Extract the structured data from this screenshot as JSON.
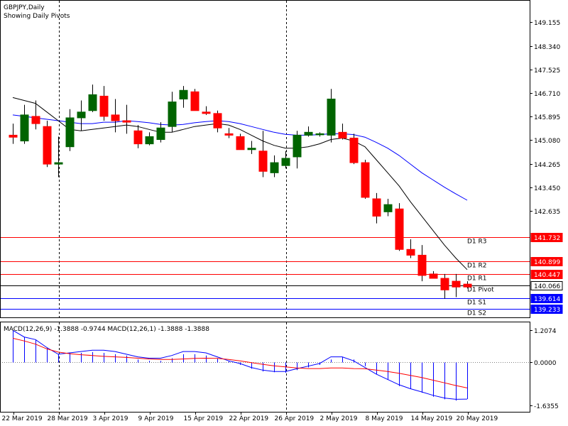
{
  "header": {
    "symbol": "GBPJPY,Daily",
    "subtitle": "Showing Daily Pivots"
  },
  "colors": {
    "bull": "#006400",
    "bear": "#ff0000",
    "ma_fast": "#000000",
    "ma_slow": "#0000ff",
    "resistance": "#ff0000",
    "support": "#0000ff",
    "pivot": "#000000",
    "macd_line": "#0000ff",
    "signal_line": "#ff0000",
    "histogram": "#0000ff"
  },
  "chart_data": {
    "type": "candlestick",
    "price_axis": {
      "labels": [
        "149.155",
        "148.340",
        "147.525",
        "146.710",
        "145.895",
        "145.080",
        "144.265",
        "143.450",
        "142.635"
      ],
      "range": [
        138.95,
        149.9
      ]
    },
    "date_axis": {
      "labels": [
        "22 Mar 2019",
        "28 Mar 2019",
        "3 Apr 2019",
        "9 Apr 2019",
        "15 Apr 2019",
        "22 Apr 2019",
        "26 Apr 2019",
        "2 May 2019",
        "8 May 2019",
        "14 May 2019",
        "20 May 2019"
      ]
    },
    "period_separators": [
      "28 Mar 2019",
      "26 Apr 2019"
    ],
    "candles": [
      {
        "o": 145.25,
        "h": 145.65,
        "l": 144.95,
        "c": 145.18
      },
      {
        "o": 145.05,
        "h": 146.3,
        "l": 144.95,
        "c": 145.95
      },
      {
        "o": 145.9,
        "h": 146.45,
        "l": 145.45,
        "c": 145.65
      },
      {
        "o": 145.55,
        "h": 145.75,
        "l": 144.15,
        "c": 144.25
      },
      {
        "o": 144.25,
        "h": 145.2,
        "l": 143.8,
        "c": 144.3
      },
      {
        "o": 144.85,
        "h": 146.15,
        "l": 144.7,
        "c": 145.85
      },
      {
        "o": 145.85,
        "h": 146.45,
        "l": 145.4,
        "c": 146.05
      },
      {
        "o": 146.1,
        "h": 147.0,
        "l": 146.05,
        "c": 146.65
      },
      {
        "o": 146.6,
        "h": 146.95,
        "l": 145.75,
        "c": 145.9
      },
      {
        "o": 145.95,
        "h": 146.5,
        "l": 145.35,
        "c": 145.75
      },
      {
        "o": 145.75,
        "h": 146.3,
        "l": 145.3,
        "c": 145.7
      },
      {
        "o": 145.4,
        "h": 145.6,
        "l": 144.8,
        "c": 144.95
      },
      {
        "o": 144.95,
        "h": 145.35,
        "l": 144.9,
        "c": 145.2
      },
      {
        "o": 145.1,
        "h": 145.7,
        "l": 145.0,
        "c": 145.5
      },
      {
        "o": 145.55,
        "h": 146.75,
        "l": 145.35,
        "c": 146.4
      },
      {
        "o": 146.5,
        "h": 146.95,
        "l": 146.2,
        "c": 146.8
      },
      {
        "o": 146.75,
        "h": 146.85,
        "l": 146.1,
        "c": 146.1
      },
      {
        "o": 146.05,
        "h": 146.25,
        "l": 145.95,
        "c": 146.0
      },
      {
        "o": 146.0,
        "h": 146.1,
        "l": 145.35,
        "c": 145.5
      },
      {
        "o": 145.3,
        "h": 145.5,
        "l": 145.15,
        "c": 145.25
      },
      {
        "o": 145.2,
        "h": 145.3,
        "l": 144.75,
        "c": 144.75
      },
      {
        "o": 144.75,
        "h": 145.05,
        "l": 144.6,
        "c": 144.8
      },
      {
        "o": 144.7,
        "h": 145.4,
        "l": 143.8,
        "c": 144.0
      },
      {
        "o": 143.95,
        "h": 144.55,
        "l": 143.8,
        "c": 144.3
      },
      {
        "o": 144.2,
        "h": 144.7,
        "l": 144.1,
        "c": 144.45
      },
      {
        "o": 144.5,
        "h": 145.4,
        "l": 144.1,
        "c": 145.25
      },
      {
        "o": 145.25,
        "h": 145.55,
        "l": 145.2,
        "c": 145.35
      },
      {
        "o": 145.3,
        "h": 145.35,
        "l": 145.2,
        "c": 145.3
      },
      {
        "o": 145.25,
        "h": 146.85,
        "l": 145.0,
        "c": 146.5
      },
      {
        "o": 145.35,
        "h": 145.65,
        "l": 145.1,
        "c": 145.15
      },
      {
        "o": 145.15,
        "h": 145.3,
        "l": 144.25,
        "c": 144.3
      },
      {
        "o": 144.3,
        "h": 144.4,
        "l": 143.05,
        "c": 143.1
      },
      {
        "o": 143.05,
        "h": 143.25,
        "l": 142.2,
        "c": 142.45
      },
      {
        "o": 142.6,
        "h": 143.05,
        "l": 142.45,
        "c": 142.85
      },
      {
        "o": 142.7,
        "h": 142.9,
        "l": 141.25,
        "c": 141.3
      },
      {
        "o": 141.3,
        "h": 141.65,
        "l": 141.0,
        "c": 141.1
      },
      {
        "o": 141.1,
        "h": 141.45,
        "l": 140.2,
        "c": 140.4
      },
      {
        "o": 140.45,
        "h": 140.55,
        "l": 140.3,
        "c": 140.3
      },
      {
        "o": 140.3,
        "h": 140.45,
        "l": 139.6,
        "c": 139.9
      },
      {
        "o": 140.2,
        "h": 140.45,
        "l": 139.65,
        "c": 140.0
      },
      {
        "o": 140.1,
        "h": 140.2,
        "l": 139.95,
        "c": 140.0
      }
    ],
    "ma_fast": [
      146.55,
      146.45,
      146.35,
      146.05,
      145.75,
      145.45,
      145.4,
      145.45,
      145.5,
      145.55,
      145.6,
      145.55,
      145.45,
      145.35,
      145.35,
      145.45,
      145.55,
      145.6,
      145.65,
      145.6,
      145.45,
      145.25,
      145.05,
      144.9,
      144.8,
      144.8,
      144.85,
      144.95,
      145.1,
      145.15,
      145.05,
      144.85,
      144.4,
      143.95,
      143.5,
      142.95,
      142.45,
      141.95,
      141.45,
      141.0,
      140.6
    ],
    "ma_slow": [
      145.95,
      145.9,
      145.85,
      145.8,
      145.75,
      145.7,
      145.65,
      145.65,
      145.7,
      145.7,
      145.75,
      145.72,
      145.68,
      145.62,
      145.6,
      145.62,
      145.68,
      145.72,
      145.75,
      145.72,
      145.65,
      145.55,
      145.45,
      145.35,
      145.28,
      145.25,
      145.25,
      145.27,
      145.3,
      145.3,
      145.27,
      145.18,
      145.0,
      144.8,
      144.55,
      144.25,
      143.95,
      143.7,
      143.45,
      143.22,
      143.0
    ],
    "pivots": [
      {
        "label": "D1 R3",
        "value": 141.732,
        "tag": "141.732"
      },
      {
        "label": "D1 R2",
        "value": 140.899,
        "tag": "140.899"
      },
      {
        "label": "D1 R1",
        "value": 140.447,
        "tag": "140.447"
      },
      {
        "label": "D1 Pivot",
        "value": 140.066,
        "tag": "140.066"
      },
      {
        "label": "D1 S1",
        "value": 139.614,
        "tag": "139.614"
      },
      {
        "label": "D1 S2",
        "value": 139.233,
        "tag": "139.233"
      }
    ],
    "macd": {
      "title": "MACD(12,26,9) -1.3888 -0.9744 MACD(12,26,1) -1.3888 -1.3888",
      "axis_labels": [
        "1.2074",
        "0.0000",
        "-1.6355"
      ],
      "range": [
        -1.87,
        1.5
      ],
      "histogram": [
        1.2,
        0.95,
        0.85,
        0.55,
        0.3,
        0.35,
        0.35,
        0.38,
        0.35,
        0.3,
        0.25,
        0.1,
        0.05,
        0.05,
        0.15,
        0.3,
        0.3,
        0.25,
        0.15,
        0.05,
        -0.1,
        -0.25,
        -0.35,
        -0.38,
        -0.4,
        -0.3,
        -0.2,
        -0.1,
        0.1,
        0.2,
        0.1,
        -0.15,
        -0.45,
        -0.65,
        -0.9,
        -1.0,
        -1.15,
        -1.3,
        -1.4,
        -1.45,
        -1.39
      ],
      "macd_line": [
        1.2,
        0.95,
        0.85,
        0.55,
        0.3,
        0.35,
        0.4,
        0.45,
        0.45,
        0.4,
        0.3,
        0.2,
        0.15,
        0.15,
        0.25,
        0.4,
        0.4,
        0.35,
        0.2,
        0.05,
        -0.05,
        -0.2,
        -0.3,
        -0.35,
        -0.35,
        -0.25,
        -0.15,
        -0.05,
        0.2,
        0.2,
        0.05,
        -0.2,
        -0.45,
        -0.65,
        -0.85,
        -1.0,
        -1.12,
        -1.25,
        -1.35,
        -1.4,
        -1.39
      ],
      "signal_line": [
        0.9,
        0.8,
        0.68,
        0.5,
        0.38,
        0.32,
        0.28,
        0.25,
        0.22,
        0.2,
        0.18,
        0.15,
        0.12,
        0.1,
        0.1,
        0.12,
        0.14,
        0.15,
        0.14,
        0.1,
        0.05,
        -0.02,
        -0.08,
        -0.14,
        -0.18,
        -0.22,
        -0.24,
        -0.24,
        -0.22,
        -0.22,
        -0.24,
        -0.25,
        -0.3,
        -0.35,
        -0.42,
        -0.5,
        -0.58,
        -0.68,
        -0.78,
        -0.88,
        -0.97
      ]
    }
  }
}
